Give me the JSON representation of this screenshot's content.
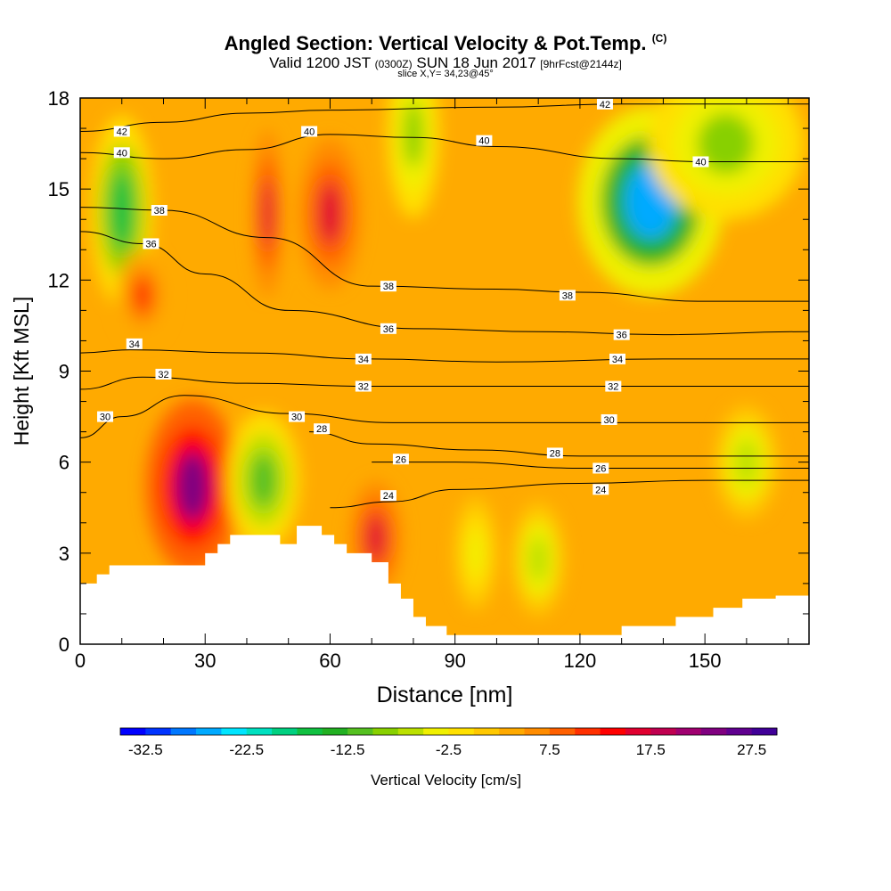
{
  "header": {
    "title": "Angled Section: Vertical Velocity & Pot.Temp.",
    "title_tag": "(C)",
    "valid_prefix": "Valid 1200 JST",
    "valid_utc": "(0300Z)",
    "valid_date": "SUN 18 Jun 2017",
    "forecast": "[9hrFcst@2144z]",
    "slice": "slice X,Y= 34,23@45°"
  },
  "chart_data": {
    "type": "heatmap",
    "xlabel": "Distance [nm]",
    "ylabel": "Height [Kft MSL]",
    "xlim": [
      0,
      175
    ],
    "ylim": [
      0,
      18
    ],
    "x_ticks": [
      0,
      30,
      60,
      90,
      120,
      150
    ],
    "y_ticks": [
      0,
      3,
      6,
      9,
      12,
      15,
      18
    ],
    "colorbar": {
      "label": "Vertical Velocity [cm/s]",
      "min": -35,
      "max": 30,
      "step": 2.5,
      "tick_labels": [
        "-32.5",
        "-22.5",
        "-12.5",
        "-2.5",
        "7.5",
        "17.5",
        "27.5"
      ],
      "colors": [
        "#0000ff",
        "#0033ff",
        "#0077ff",
        "#00aaff",
        "#00e5ff",
        "#00e0c0",
        "#00d080",
        "#10c040",
        "#22b022",
        "#55c020",
        "#88d000",
        "#bbe000",
        "#f0f000",
        "#ffe000",
        "#ffc800",
        "#ffaa00",
        "#ff8c00",
        "#ff6000",
        "#ff3000",
        "#ff0000",
        "#e00030",
        "#c00050",
        "#a00070",
        "#800080",
        "#600090",
        "#400098"
      ]
    },
    "theta_contours": [
      {
        "value": 24,
        "points": [
          [
            60,
            4.5
          ],
          [
            75,
            4.7
          ],
          [
            90,
            5.1
          ],
          [
            120,
            5.3
          ],
          [
            150,
            5.4
          ],
          [
            175,
            5.4
          ]
        ],
        "labels": [
          [
            74,
            4.9
          ],
          [
            125,
            5.1
          ]
        ]
      },
      {
        "value": 26,
        "points": [
          [
            70,
            6.0
          ],
          [
            90,
            6.0
          ],
          [
            120,
            5.8
          ],
          [
            150,
            5.8
          ],
          [
            175,
            5.8
          ]
        ],
        "labels": [
          [
            77,
            6.1
          ],
          [
            125,
            5.8
          ]
        ]
      },
      {
        "value": 28,
        "points": [
          [
            55,
            7.0
          ],
          [
            70,
            6.6
          ],
          [
            95,
            6.4
          ],
          [
            120,
            6.2
          ],
          [
            150,
            6.2
          ],
          [
            175,
            6.2
          ]
        ],
        "labels": [
          [
            58,
            7.1
          ],
          [
            114,
            6.3
          ]
        ]
      },
      {
        "value": 30,
        "points": [
          [
            0,
            6.8
          ],
          [
            10,
            7.5
          ],
          [
            25,
            8.2
          ],
          [
            50,
            7.6
          ],
          [
            75,
            7.3
          ],
          [
            120,
            7.3
          ],
          [
            175,
            7.3
          ]
        ],
        "labels": [
          [
            6,
            7.5
          ],
          [
            52,
            7.5
          ],
          [
            127,
            7.4
          ]
        ]
      },
      {
        "value": 32,
        "points": [
          [
            0,
            8.4
          ],
          [
            15,
            8.8
          ],
          [
            40,
            8.6
          ],
          [
            70,
            8.5
          ],
          [
            100,
            8.5
          ],
          [
            140,
            8.5
          ],
          [
            175,
            8.5
          ]
        ],
        "labels": [
          [
            20,
            8.9
          ],
          [
            68,
            8.5
          ],
          [
            128,
            8.5
          ]
        ]
      },
      {
        "value": 34,
        "points": [
          [
            0,
            9.6
          ],
          [
            12,
            9.7
          ],
          [
            40,
            9.6
          ],
          [
            70,
            9.4
          ],
          [
            100,
            9.3
          ],
          [
            140,
            9.4
          ],
          [
            175,
            9.4
          ]
        ],
        "labels": [
          [
            13,
            9.9
          ],
          [
            68,
            9.4
          ],
          [
            129,
            9.4
          ]
        ]
      },
      {
        "value": 36,
        "points": [
          [
            0,
            13.6
          ],
          [
            15,
            13.2
          ],
          [
            30,
            12.2
          ],
          [
            50,
            11.0
          ],
          [
            80,
            10.4
          ],
          [
            110,
            10.3
          ],
          [
            140,
            10.2
          ],
          [
            175,
            10.3
          ]
        ],
        "labels": [
          [
            17,
            13.2
          ],
          [
            74,
            10.4
          ],
          [
            130,
            10.2
          ]
        ]
      },
      {
        "value": 38,
        "points": [
          [
            0,
            14.4
          ],
          [
            20,
            14.3
          ],
          [
            45,
            13.4
          ],
          [
            70,
            11.8
          ],
          [
            100,
            11.7
          ],
          [
            120,
            11.6
          ],
          [
            150,
            11.3
          ],
          [
            175,
            11.3
          ]
        ],
        "labels": [
          [
            19,
            14.3
          ],
          [
            74,
            11.8
          ],
          [
            117,
            11.5
          ]
        ]
      },
      {
        "value": 40,
        "points": [
          [
            0,
            16.2
          ],
          [
            20,
            16.0
          ],
          [
            40,
            16.3
          ],
          [
            60,
            16.8
          ],
          [
            80,
            16.7
          ],
          [
            100,
            16.4
          ],
          [
            130,
            16.0
          ],
          [
            150,
            15.9
          ],
          [
            175,
            15.9
          ]
        ],
        "labels": [
          [
            10,
            16.2
          ],
          [
            55,
            16.9
          ],
          [
            97,
            16.6
          ],
          [
            149,
            15.9
          ]
        ]
      },
      {
        "value": 42,
        "points": [
          [
            0,
            16.9
          ],
          [
            20,
            17.2
          ],
          [
            40,
            17.5
          ],
          [
            60,
            17.6
          ],
          [
            100,
            17.7
          ],
          [
            130,
            17.8
          ],
          [
            175,
            17.8
          ]
        ],
        "labels": [
          [
            10,
            16.9
          ],
          [
            126,
            17.8
          ]
        ]
      }
    ],
    "terrain_height_kft": [
      [
        0,
        2.0
      ],
      [
        4,
        2.0
      ],
      [
        4,
        2.3
      ],
      [
        7,
        2.3
      ],
      [
        7,
        2.6
      ],
      [
        30,
        2.6
      ],
      [
        30,
        3.0
      ],
      [
        33,
        3.0
      ],
      [
        33,
        3.3
      ],
      [
        36,
        3.3
      ],
      [
        36,
        3.6
      ],
      [
        48,
        3.6
      ],
      [
        48,
        3.3
      ],
      [
        52,
        3.3
      ],
      [
        52,
        3.9
      ],
      [
        58,
        3.9
      ],
      [
        58,
        3.6
      ],
      [
        61,
        3.6
      ],
      [
        61,
        3.3
      ],
      [
        64,
        3.3
      ],
      [
        64,
        3.0
      ],
      [
        70,
        3.0
      ],
      [
        70,
        2.7
      ],
      [
        74,
        2.7
      ],
      [
        74,
        2.0
      ],
      [
        77,
        2.0
      ],
      [
        77,
        1.5
      ],
      [
        80,
        1.5
      ],
      [
        80,
        0.9
      ],
      [
        83,
        0.9
      ],
      [
        83,
        0.6
      ],
      [
        88,
        0.6
      ],
      [
        88,
        0.3
      ],
      [
        130,
        0.3
      ],
      [
        130,
        0.6
      ],
      [
        143,
        0.6
      ],
      [
        143,
        0.9
      ],
      [
        152,
        0.9
      ],
      [
        152,
        1.2
      ],
      [
        159,
        1.2
      ],
      [
        159,
        1.5
      ],
      [
        167,
        1.5
      ],
      [
        167,
        1.6
      ],
      [
        175,
        1.6
      ]
    ],
    "velocity_features": [
      {
        "x": 27,
        "y": 5.2,
        "rx": 9,
        "ry": 2.3,
        "w": 22.5
      },
      {
        "x": 45,
        "y": 14.2,
        "rx": 3,
        "ry": 2.2,
        "w": 15
      },
      {
        "x": 60,
        "y": 14.2,
        "rx": 6,
        "ry": 2.0,
        "w": 15
      },
      {
        "x": 71,
        "y": 3.5,
        "rx": 5,
        "ry": 1.5,
        "w": 15
      },
      {
        "x": 44,
        "y": 5.4,
        "rx": 7,
        "ry": 1.8,
        "w": -12.5
      },
      {
        "x": 10,
        "y": 14.3,
        "rx": 6,
        "ry": 2.5,
        "w": -17.5
      },
      {
        "x": 137,
        "y": 14.6,
        "rx": 14,
        "ry": 2.5,
        "w": -27.5
      },
      {
        "x": 80,
        "y": 16.8,
        "rx": 5,
        "ry": 2.2,
        "w": -10
      },
      {
        "x": 15,
        "y": 11.5,
        "rx": 5,
        "ry": 1.2,
        "w": 10
      },
      {
        "x": 110,
        "y": 2.8,
        "rx": 5,
        "ry": 1.5,
        "w": -7.5
      },
      {
        "x": 95,
        "y": 3.0,
        "rx": 4,
        "ry": 1.5,
        "w": -5
      },
      {
        "x": 160,
        "y": 6.0,
        "rx": 6,
        "ry": 1.5,
        "w": -7.5
      },
      {
        "x": 155,
        "y": 16.5,
        "rx": 15,
        "ry": 2.0,
        "w": -10
      }
    ]
  }
}
